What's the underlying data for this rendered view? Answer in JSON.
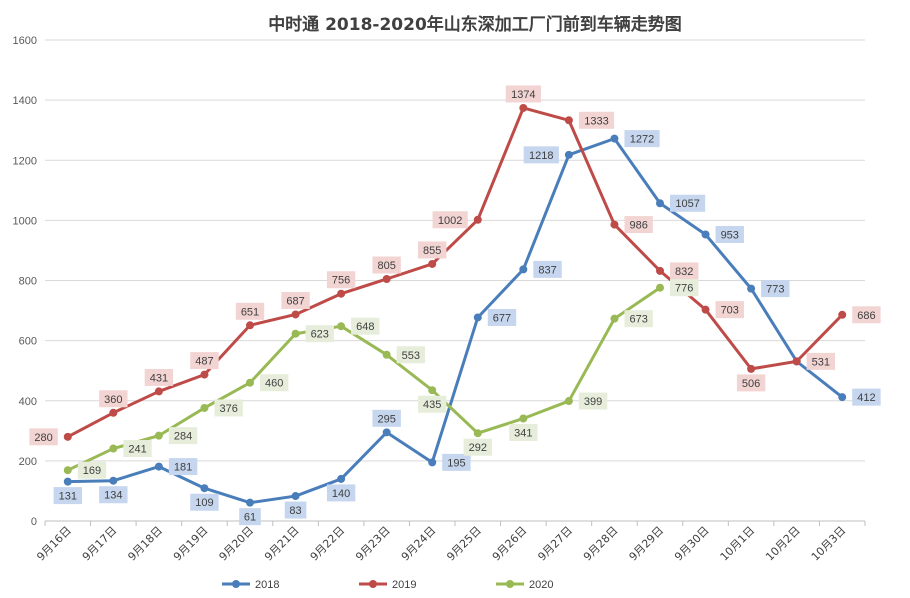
{
  "chart_data": {
    "type": "line",
    "title": "中时通 2018-2020年山东深加工厂门前到车辆走势图",
    "xlabel": "",
    "ylabel": "",
    "ylim": [
      0,
      1600
    ],
    "yticks": [
      0,
      200,
      400,
      600,
      800,
      1000,
      1200,
      1400,
      1600
    ],
    "grid": true,
    "legend_position": "bottom",
    "categories": [
      "9月16日",
      "9月17日",
      "9月18日",
      "9月19日",
      "9月20日",
      "9月21日",
      "9月22日",
      "9月23日",
      "9月24日",
      "9月25日",
      "9月26日",
      "9月27日",
      "9月28日",
      "9月29日",
      "9月30日",
      "10月1日",
      "10月2日",
      "10月3日"
    ],
    "series": [
      {
        "name": "2018",
        "color": "#4a7ebb",
        "label_bg": "#c5d6ee",
        "values": [
          131,
          134,
          181,
          109,
          61,
          83,
          140,
          295,
          195,
          677,
          837,
          1218,
          1272,
          1057,
          953,
          773,
          531,
          412
        ],
        "label_pos": [
          "below",
          "below",
          "right",
          "below",
          "below",
          "below",
          "below",
          "above",
          "right",
          "right",
          "right",
          "left",
          "right",
          "right",
          "right",
          "right",
          "none",
          "right"
        ]
      },
      {
        "name": "2019",
        "color": "#be4b48",
        "label_bg": "#f2d4d3",
        "values": [
          280,
          360,
          431,
          487,
          651,
          687,
          756,
          805,
          855,
          1002,
          1374,
          1333,
          986,
          832,
          703,
          506,
          531,
          686
        ],
        "label_pos": [
          "left",
          "above",
          "above",
          "above",
          "above",
          "above",
          "above",
          "above",
          "above",
          "left",
          "above",
          "right",
          "right",
          "right",
          "right",
          "below",
          "right",
          "right"
        ]
      },
      {
        "name": "2020",
        "color": "#98b954",
        "label_bg": "#e6eedb",
        "values": [
          169,
          241,
          284,
          376,
          460,
          623,
          648,
          553,
          435,
          292,
          341,
          399,
          673,
          776,
          null,
          null,
          null,
          null
        ],
        "label_pos": [
          "right",
          "right",
          "right",
          "right",
          "right",
          "right",
          "right",
          "right",
          "below",
          "below",
          "below",
          "right",
          "right",
          "right",
          "none",
          "none",
          "none",
          "none"
        ]
      }
    ]
  }
}
